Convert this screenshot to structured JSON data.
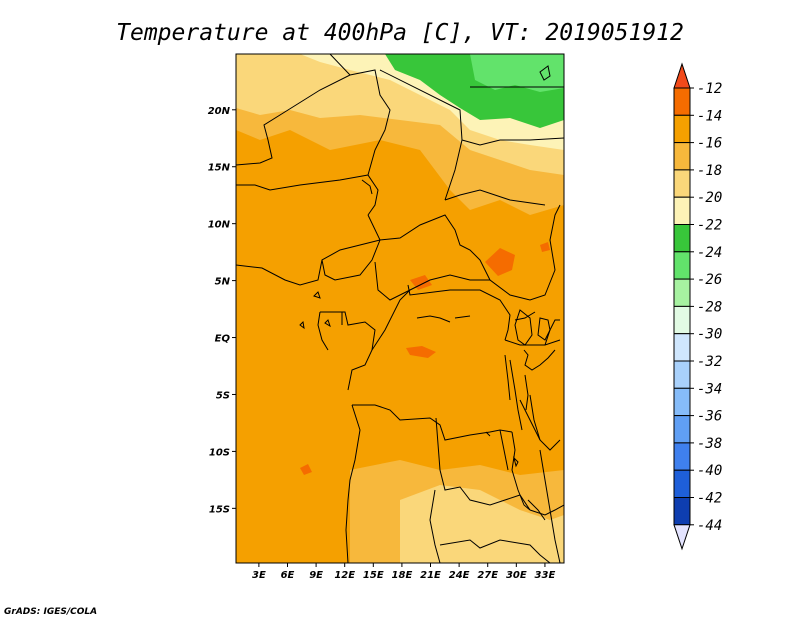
{
  "title": "Temperature at 400hPa [C], VT: 2019051912",
  "credit": "GrADS: IGES/COLA",
  "map": {
    "lat_labels": [
      "20N",
      "15N",
      "10N",
      "5N",
      "EQ",
      "5S",
      "10S",
      "15S"
    ],
    "lat_values": [
      20,
      15,
      10,
      5,
      0,
      -5,
      -10,
      -15
    ],
    "lon_labels": [
      "3E",
      "6E",
      "9E",
      "12E",
      "15E",
      "18E",
      "21E",
      "24E",
      "27E",
      "30E",
      "33E"
    ],
    "lon_values": [
      3,
      6,
      9,
      12,
      15,
      18,
      21,
      24,
      27,
      30,
      33
    ],
    "extent": {
      "lon": [
        0.6,
        35.0
      ],
      "lat": [
        -19.8,
        24.9
      ]
    }
  },
  "colorbar": {
    "labels": [
      "-12",
      "-14",
      "-16",
      "-18",
      "-20",
      "-22",
      "-24",
      "-26",
      "-28",
      "-30",
      "-32",
      "-34",
      "-36",
      "-38",
      "-40",
      "-42",
      "-44"
    ],
    "colors": [
      "#f24a1a",
      "#f56c00",
      "#f5a000",
      "#f7b83c",
      "#fad77a",
      "#fdf3b7",
      "#38c63a",
      "#62e36b",
      "#a7f2a1",
      "#e2fbe4",
      "#cfe6fd",
      "#a9d1fb",
      "#86bcf9",
      "#609ff4",
      "#3f80ee",
      "#1e5fd9",
      "#0e3eb0",
      "#0a1673",
      "#e4e4ff"
    ]
  }
}
